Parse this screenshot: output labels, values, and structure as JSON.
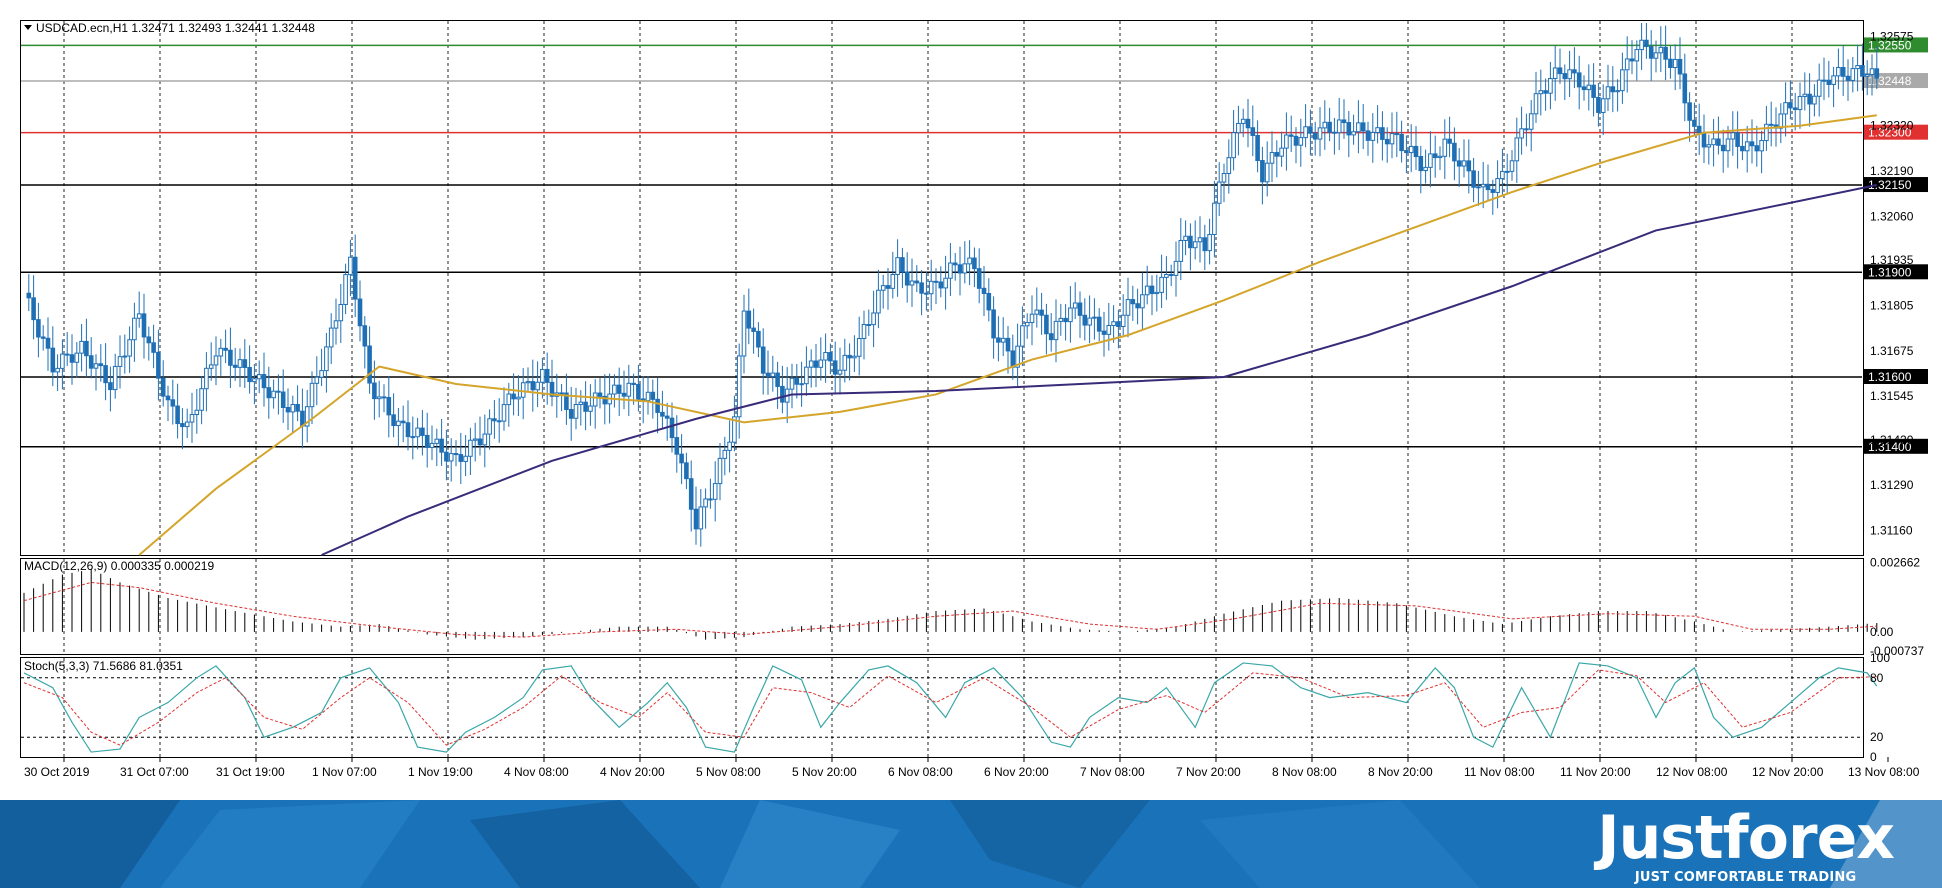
{
  "chart_data": [
    {
      "type": "candlestick",
      "title": "USDCAD.ecn,H1  1.32471 1.32493 1.32441 1.32448",
      "ylim": [
        1.3109,
        1.3262
      ],
      "price_scale": [
        "1.32575",
        "1.32320",
        "1.32190",
        "1.32060",
        "1.31935",
        "1.31805",
        "1.31675",
        "1.31545",
        "1.31420",
        "1.31290",
        "1.31160"
      ],
      "levels": [
        {
          "label": "1.32550",
          "value": 1.3255,
          "color": "#2e8b2e"
        },
        {
          "label": "1.32448",
          "value": 1.32448,
          "color": "#a9a9a9"
        },
        {
          "label": "1.32300",
          "value": 1.323,
          "color": "#e03030"
        },
        {
          "label": "1.32150",
          "value": 1.3215,
          "color": "#000000"
        },
        {
          "label": "1.31900",
          "value": 1.319,
          "color": "#000000"
        },
        {
          "label": "1.31600",
          "value": 1.316,
          "color": "#000000"
        },
        {
          "label": "1.31400",
          "value": 1.314,
          "color": "#000000"
        }
      ],
      "candle_color": "#1f6fb5",
      "close_path": [
        [
          0,
          1.3184
        ],
        [
          6,
          1.3163
        ],
        [
          12,
          1.3168
        ],
        [
          18,
          1.3158
        ],
        [
          24,
          1.3178
        ],
        [
          30,
          1.3152
        ],
        [
          34,
          1.3145
        ],
        [
          40,
          1.3168
        ],
        [
          46,
          1.3162
        ],
        [
          52,
          1.3155
        ],
        [
          58,
          1.3148
        ],
        [
          64,
          1.3172
        ],
        [
          68,
          1.3193
        ],
        [
          72,
          1.3158
        ],
        [
          78,
          1.3146
        ],
        [
          84,
          1.3142
        ],
        [
          90,
          1.3136
        ],
        [
          96,
          1.3144
        ],
        [
          102,
          1.3155
        ],
        [
          108,
          1.316
        ],
        [
          114,
          1.315
        ],
        [
          120,
          1.3154
        ],
        [
          126,
          1.3157
        ],
        [
          132,
          1.3152
        ],
        [
          136,
          1.314
        ],
        [
          140,
          1.3118
        ],
        [
          144,
          1.313
        ],
        [
          148,
          1.3148
        ],
        [
          150,
          1.318
        ],
        [
          154,
          1.3163
        ],
        [
          158,
          1.3155
        ],
        [
          162,
          1.316
        ],
        [
          166,
          1.3166
        ],
        [
          170,
          1.3162
        ],
        [
          174,
          1.317
        ],
        [
          178,
          1.3183
        ],
        [
          182,
          1.3192
        ],
        [
          186,
          1.3185
        ],
        [
          190,
          1.3186
        ],
        [
          194,
          1.3192
        ],
        [
          198,
          1.3192
        ],
        [
          202,
          1.3173
        ],
        [
          206,
          1.3165
        ],
        [
          210,
          1.318
        ],
        [
          214,
          1.3172
        ],
        [
          218,
          1.318
        ],
        [
          222,
          1.3176
        ],
        [
          226,
          1.3173
        ],
        [
          230,
          1.318
        ],
        [
          234,
          1.3184
        ],
        [
          238,
          1.3188
        ],
        [
          242,
          1.32
        ],
        [
          246,
          1.3197
        ],
        [
          250,
          1.322
        ],
        [
          254,
          1.3236
        ],
        [
          258,
          1.3218
        ],
        [
          262,
          1.3227
        ],
        [
          268,
          1.323
        ],
        [
          274,
          1.3232
        ],
        [
          280,
          1.323
        ],
        [
          286,
          1.3228
        ],
        [
          292,
          1.322
        ],
        [
          296,
          1.3227
        ],
        [
          300,
          1.322
        ],
        [
          304,
          1.3213
        ],
        [
          308,
          1.3217
        ],
        [
          312,
          1.323
        ],
        [
          316,
          1.3242
        ],
        [
          320,
          1.3248
        ],
        [
          324,
          1.3245
        ],
        [
          328,
          1.3238
        ],
        [
          332,
          1.3244
        ],
        [
          336,
          1.3255
        ],
        [
          340,
          1.3253
        ],
        [
          344,
          1.325
        ],
        [
          348,
          1.323
        ],
        [
          352,
          1.3226
        ],
        [
          356,
          1.3228
        ],
        [
          360,
          1.3225
        ],
        [
          364,
          1.3232
        ],
        [
          368,
          1.3238
        ],
        [
          372,
          1.324
        ],
        [
          376,
          1.3246
        ],
        [
          380,
          1.3247
        ],
        [
          384,
          1.3248
        ],
        [
          386,
          1.32448
        ]
      ],
      "ma_slow": [
        [
          62,
          1.3109
        ],
        [
          80,
          1.312
        ],
        [
          110,
          1.3136
        ],
        [
          140,
          1.3148
        ],
        [
          160,
          1.3155
        ],
        [
          190,
          1.3156
        ],
        [
          220,
          1.3158
        ],
        [
          250,
          1.316
        ],
        [
          280,
          1.3172
        ],
        [
          310,
          1.3186
        ],
        [
          340,
          1.3202
        ],
        [
          386,
          1.3215
        ]
      ],
      "ma_fast": [
        [
          24,
          1.3109
        ],
        [
          40,
          1.3128
        ],
        [
          60,
          1.3148
        ],
        [
          74,
          1.3163
        ],
        [
          90,
          1.3158
        ],
        [
          110,
          1.3155
        ],
        [
          130,
          1.3153
        ],
        [
          150,
          1.3147
        ],
        [
          170,
          1.315
        ],
        [
          190,
          1.3155
        ],
        [
          210,
          1.3165
        ],
        [
          230,
          1.3172
        ],
        [
          250,
          1.3182
        ],
        [
          270,
          1.3193
        ],
        [
          290,
          1.3203
        ],
        [
          310,
          1.3213
        ],
        [
          330,
          1.3222
        ],
        [
          350,
          1.323
        ],
        [
          370,
          1.3232
        ],
        [
          386,
          1.3235
        ]
      ]
    },
    {
      "type": "histogram",
      "title": "MACD(12,26,9) 0.000335 0.000219",
      "ylim": [
        -0.00085,
        0.0028
      ],
      "price_scale": [
        "0.002662",
        "0.00",
        "-0.000737"
      ],
      "bar_color": "#000000",
      "signal_color": "#e03030",
      "bar_path": [
        [
          0,
          0.0015
        ],
        [
          8,
          0.0022
        ],
        [
          14,
          0.0024
        ],
        [
          20,
          0.0019
        ],
        [
          30,
          0.0013
        ],
        [
          44,
          0.0008
        ],
        [
          56,
          0.0004
        ],
        [
          66,
          0.0002
        ],
        [
          74,
          0.0003
        ],
        [
          84,
          -0.0001
        ],
        [
          94,
          -0.0003
        ],
        [
          104,
          -0.0002
        ],
        [
          114,
          0.0
        ],
        [
          124,
          0.0002
        ],
        [
          134,
          0.0002
        ],
        [
          142,
          -0.0003
        ],
        [
          150,
          -0.0002
        ],
        [
          160,
          0.0002
        ],
        [
          170,
          0.0003
        ],
        [
          180,
          0.0005
        ],
        [
          190,
          0.0008
        ],
        [
          200,
          0.0009
        ],
        [
          210,
          0.0004
        ],
        [
          220,
          0.0001
        ],
        [
          230,
          0.0
        ],
        [
          240,
          0.0002
        ],
        [
          250,
          0.0007
        ],
        [
          262,
          0.0012
        ],
        [
          274,
          0.0013
        ],
        [
          286,
          0.0011
        ],
        [
          298,
          0.0006
        ],
        [
          308,
          0.0003
        ],
        [
          318,
          0.0006
        ],
        [
          328,
          0.0008
        ],
        [
          338,
          0.0008
        ],
        [
          348,
          0.0004
        ],
        [
          356,
          0.0
        ],
        [
          366,
          0.0001
        ],
        [
          376,
          0.0002
        ],
        [
          386,
          0.00034
        ]
      ],
      "signal_path": [
        [
          0,
          0.0012
        ],
        [
          14,
          0.0019
        ],
        [
          24,
          0.0017
        ],
        [
          40,
          0.0011
        ],
        [
          56,
          0.0006
        ],
        [
          74,
          0.0002
        ],
        [
          90,
          -0.0001
        ],
        [
          104,
          -0.0002
        ],
        [
          120,
          0.0
        ],
        [
          136,
          0.0001
        ],
        [
          150,
          -0.0001
        ],
        [
          170,
          0.0002
        ],
        [
          190,
          0.0006
        ],
        [
          206,
          0.0008
        ],
        [
          222,
          0.0003
        ],
        [
          236,
          0.0001
        ],
        [
          252,
          0.0005
        ],
        [
          270,
          0.0011
        ],
        [
          290,
          0.001
        ],
        [
          310,
          0.0005
        ],
        [
          330,
          0.0007
        ],
        [
          348,
          0.0006
        ],
        [
          360,
          0.0001
        ],
        [
          376,
          0.0001
        ],
        [
          386,
          0.00022
        ]
      ]
    },
    {
      "type": "line",
      "title": "Stoch(5,3,3) 71.5686 81.0351",
      "ylim": [
        0,
        100
      ],
      "price_scale": [
        "100",
        "80",
        "20",
        "0"
      ],
      "ref_levels": [
        80,
        20
      ],
      "main_color": "#3aa7a7",
      "signal_color": "#e03030",
      "main_path": [
        [
          0,
          85
        ],
        [
          6,
          70
        ],
        [
          10,
          35
        ],
        [
          14,
          5
        ],
        [
          20,
          8
        ],
        [
          24,
          40
        ],
        [
          30,
          55
        ],
        [
          36,
          80
        ],
        [
          40,
          92
        ],
        [
          46,
          60
        ],
        [
          50,
          20
        ],
        [
          56,
          30
        ],
        [
          62,
          45
        ],
        [
          66,
          80
        ],
        [
          72,
          90
        ],
        [
          78,
          55
        ],
        [
          82,
          10
        ],
        [
          88,
          5
        ],
        [
          92,
          25
        ],
        [
          98,
          40
        ],
        [
          104,
          60
        ],
        [
          108,
          88
        ],
        [
          114,
          92
        ],
        [
          118,
          60
        ],
        [
          124,
          30
        ],
        [
          130,
          55
        ],
        [
          134,
          75
        ],
        [
          138,
          50
        ],
        [
          142,
          10
        ],
        [
          148,
          5
        ],
        [
          152,
          50
        ],
        [
          156,
          92
        ],
        [
          162,
          78
        ],
        [
          166,
          30
        ],
        [
          170,
          55
        ],
        [
          176,
          88
        ],
        [
          180,
          92
        ],
        [
          186,
          75
        ],
        [
          192,
          40
        ],
        [
          196,
          75
        ],
        [
          202,
          90
        ],
        [
          208,
          60
        ],
        [
          214,
          15
        ],
        [
          218,
          10
        ],
        [
          222,
          40
        ],
        [
          228,
          60
        ],
        [
          234,
          55
        ],
        [
          238,
          70
        ],
        [
          244,
          30
        ],
        [
          248,
          75
        ],
        [
          254,
          95
        ],
        [
          260,
          92
        ],
        [
          266,
          70
        ],
        [
          272,
          60
        ],
        [
          280,
          65
        ],
        [
          288,
          55
        ],
        [
          294,
          90
        ],
        [
          298,
          70
        ],
        [
          302,
          20
        ],
        [
          306,
          10
        ],
        [
          312,
          70
        ],
        [
          318,
          20
        ],
        [
          324,
          95
        ],
        [
          330,
          92
        ],
        [
          336,
          80
        ],
        [
          340,
          40
        ],
        [
          344,
          75
        ],
        [
          348,
          90
        ],
        [
          352,
          40
        ],
        [
          356,
          20
        ],
        [
          362,
          30
        ],
        [
          368,
          55
        ],
        [
          374,
          80
        ],
        [
          378,
          90
        ],
        [
          384,
          85
        ],
        [
          386,
          71.57
        ]
      ],
      "signal_path": [
        [
          0,
          75
        ],
        [
          8,
          60
        ],
        [
          14,
          25
        ],
        [
          20,
          12
        ],
        [
          28,
          35
        ],
        [
          36,
          65
        ],
        [
          42,
          80
        ],
        [
          50,
          40
        ],
        [
          58,
          28
        ],
        [
          66,
          60
        ],
        [
          72,
          80
        ],
        [
          80,
          55
        ],
        [
          88,
          12
        ],
        [
          96,
          28
        ],
        [
          104,
          50
        ],
        [
          112,
          82
        ],
        [
          120,
          55
        ],
        [
          128,
          40
        ],
        [
          134,
          65
        ],
        [
          142,
          25
        ],
        [
          150,
          20
        ],
        [
          156,
          70
        ],
        [
          164,
          65
        ],
        [
          172,
          50
        ],
        [
          180,
          82
        ],
        [
          190,
          55
        ],
        [
          200,
          80
        ],
        [
          210,
          50
        ],
        [
          218,
          20
        ],
        [
          228,
          48
        ],
        [
          238,
          62
        ],
        [
          246,
          45
        ],
        [
          256,
          85
        ],
        [
          266,
          80
        ],
        [
          276,
          60
        ],
        [
          288,
          62
        ],
        [
          296,
          75
        ],
        [
          304,
          30
        ],
        [
          312,
          45
        ],
        [
          320,
          50
        ],
        [
          328,
          88
        ],
        [
          336,
          82
        ],
        [
          342,
          55
        ],
        [
          350,
          75
        ],
        [
          358,
          30
        ],
        [
          368,
          45
        ],
        [
          378,
          80
        ],
        [
          386,
          81.04
        ]
      ]
    }
  ],
  "time_axis": {
    "labels": [
      {
        "text": "30 Oct 2019",
        "bar": 0
      },
      {
        "text": "31 Oct 07:00",
        "bar": 20
      },
      {
        "text": "31 Oct 19:00",
        "bar": 40
      },
      {
        "text": "1 Nov 07:00",
        "bar": 60
      },
      {
        "text": "1 Nov 19:00",
        "bar": 80
      },
      {
        "text": "4 Nov 08:00",
        "bar": 100
      },
      {
        "text": "4 Nov 20:00",
        "bar": 120
      },
      {
        "text": "5 Nov 08:00",
        "bar": 140
      },
      {
        "text": "5 Nov 20:00",
        "bar": 160
      },
      {
        "text": "6 Nov 08:00",
        "bar": 180
      },
      {
        "text": "6 Nov 20:00",
        "bar": 200
      },
      {
        "text": "7 Nov 08:00",
        "bar": 220
      },
      {
        "text": "7 Nov 20:00",
        "bar": 240
      },
      {
        "text": "8 Nov 08:00",
        "bar": 260
      },
      {
        "text": "8 Nov 20:00",
        "bar": 280
      },
      {
        "text": "11 Nov 08:00",
        "bar": 300
      },
      {
        "text": "11 Nov 20:00",
        "bar": 320
      },
      {
        "text": "12 Nov 08:00",
        "bar": 340
      },
      {
        "text": "12 Nov 20:00",
        "bar": 360
      },
      {
        "text": "13 Nov 08:00",
        "bar": 380
      }
    ]
  },
  "brand": {
    "name": "Justforex",
    "tagline": "JUST COMFORTABLE TRADING",
    "banner_color": "#1a72b8",
    "banner_dark": "#0e4f86"
  }
}
